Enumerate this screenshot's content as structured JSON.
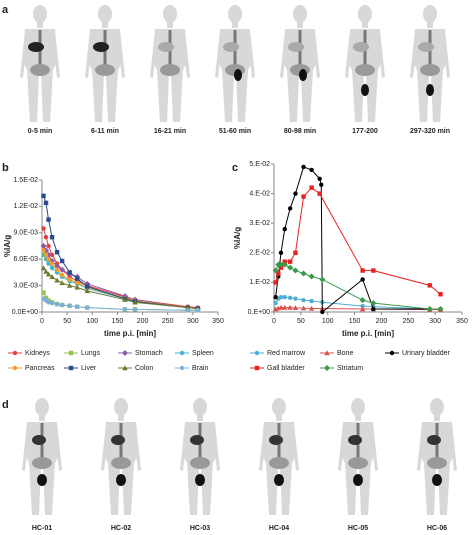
{
  "panel_labels": [
    "a",
    "b",
    "c",
    "d"
  ],
  "timepoints": [
    "0-5 min",
    "6-11 min",
    "16-21 min",
    "51-60 min",
    "80-98 min",
    "177-200",
    "297-320 min"
  ],
  "subjects": [
    "HC-01",
    "HC-02",
    "HC-03",
    "HC-04",
    "HC-05",
    "HC-06"
  ],
  "chart_data": [
    {
      "type": "line",
      "y_label": "%IA/g",
      "x_label": "time p.i. [min]",
      "xlim": [
        0,
        350
      ],
      "xticks": [
        0,
        50,
        100,
        150,
        200,
        250,
        300,
        350
      ],
      "ylim": [
        0,
        0.015
      ],
      "yticks": [
        {
          "value": 0,
          "label": "0.0E+00"
        },
        {
          "value": 0.003,
          "label": "3.0E-03"
        },
        {
          "value": 0.006,
          "label": "6.0E-03"
        },
        {
          "value": 0.009,
          "label": "9.0E-03"
        },
        {
          "value": 0.012,
          "label": "1.2E-02"
        },
        {
          "value": 0.015,
          "label": "1.5E-02"
        }
      ],
      "series": [
        {
          "name": "Kidneys",
          "color": "#e2403b",
          "x": [
            3,
            8,
            13,
            20,
            30,
            40,
            55,
            70,
            90,
            165,
            185,
            290,
            310
          ],
          "values": [
            0.0095,
            0.0085,
            0.0075,
            0.0065,
            0.0055,
            0.0048,
            0.004,
            0.0035,
            0.003,
            0.0017,
            0.0014,
            0.0006,
            0.0005
          ]
        },
        {
          "name": "Lungs",
          "color": "#92c353",
          "x": [
            3,
            8,
            13,
            20,
            30,
            40,
            55,
            70,
            90,
            165,
            185,
            290,
            310
          ],
          "values": [
            0.0022,
            0.0016,
            0.0013,
            0.0011,
            0.0009,
            0.0008,
            0.0007,
            0.0006,
            0.0005,
            0.0003,
            0.0003,
            0.0002,
            0.0002
          ]
        },
        {
          "name": "Stomach",
          "color": "#8e5ba6",
          "x": [
            3,
            8,
            13,
            20,
            30,
            40,
            55,
            70,
            90,
            165,
            185,
            290,
            310
          ],
          "values": [
            0.0075,
            0.007,
            0.0065,
            0.0058,
            0.0052,
            0.0048,
            0.0043,
            0.004,
            0.0032,
            0.0018,
            0.0014,
            0.0005,
            0.0004
          ]
        },
        {
          "name": "Spleen",
          "color": "#3fb6c9",
          "x": [
            3,
            8,
            13,
            20,
            30,
            40,
            55,
            70,
            90,
            165,
            185,
            290,
            310
          ],
          "values": [
            0.0065,
            0.006,
            0.0055,
            0.005,
            0.0045,
            0.004,
            0.0035,
            0.0032,
            0.0027,
            0.0015,
            0.0012,
            0.0005,
            0.0004
          ]
        },
        {
          "name": "Pancreas",
          "color": "#f39c2b",
          "x": [
            3,
            8,
            13,
            20,
            30,
            40,
            55,
            70,
            90,
            165,
            185,
            290,
            310
          ],
          "values": [
            0.007,
            0.0065,
            0.006,
            0.0055,
            0.0048,
            0.0042,
            0.0037,
            0.0033,
            0.0028,
            0.0016,
            0.0013,
            0.0005,
            0.0004
          ]
        },
        {
          "name": "Liver",
          "color": "#2a4b8d",
          "x": [
            3,
            8,
            13,
            20,
            30,
            40,
            55,
            70,
            90,
            165,
            185,
            290,
            310
          ],
          "values": [
            0.0132,
            0.0124,
            0.0105,
            0.0085,
            0.0068,
            0.0058,
            0.0045,
            0.0038,
            0.0029,
            0.0015,
            0.0012,
            0.0005,
            0.0004
          ]
        },
        {
          "name": "Colon",
          "color": "#6b7a2e",
          "x": [
            3,
            8,
            13,
            20,
            30,
            40,
            55,
            70,
            90,
            165,
            185,
            290,
            310
          ],
          "values": [
            0.005,
            0.0046,
            0.0043,
            0.004,
            0.0036,
            0.0033,
            0.003,
            0.0028,
            0.0024,
            0.0014,
            0.0011,
            0.0005,
            0.0004
          ]
        },
        {
          "name": "Brain",
          "color": "#7db0d8",
          "x": [
            3,
            8,
            13,
            20,
            30,
            40,
            55,
            70,
            90,
            165,
            185,
            290,
            310
          ],
          "values": [
            0.0015,
            0.0013,
            0.0011,
            0.001,
            0.0009,
            0.0008,
            0.0007,
            0.0006,
            0.0005,
            0.0003,
            0.0003,
            0.0002,
            0.0002
          ]
        }
      ]
    },
    {
      "type": "line",
      "y_label": "%IA/g",
      "x_label": "time p.i. [min]",
      "xlim": [
        0,
        350
      ],
      "xticks": [
        0,
        50,
        100,
        150,
        200,
        250,
        300,
        350
      ],
      "ylim": [
        0,
        0.05
      ],
      "yticks": [
        {
          "value": 0,
          "label": "0.E+00"
        },
        {
          "value": 0.01,
          "label": "1.E-02"
        },
        {
          "value": 0.02,
          "label": "2.E-02"
        },
        {
          "value": 0.03,
          "label": "3.E-02"
        },
        {
          "value": 0.04,
          "label": "4.E-02"
        },
        {
          "value": 0.05,
          "label": "5.E-02"
        }
      ],
      "series": [
        {
          "name": "Red marrow",
          "color": "#4eaed6",
          "x": [
            3,
            8,
            13,
            20,
            30,
            40,
            55,
            70,
            90,
            165,
            185,
            290,
            310
          ],
          "values": [
            0.003,
            0.0045,
            0.005,
            0.005,
            0.0048,
            0.0045,
            0.004,
            0.0037,
            0.0033,
            0.002,
            0.0018,
            0.001,
            0.0009
          ]
        },
        {
          "name": "Bone",
          "color": "#d9534f",
          "x": [
            3,
            8,
            13,
            20,
            30,
            40,
            55,
            70,
            90,
            165,
            185,
            290,
            310
          ],
          "values": [
            0.001,
            0.0013,
            0.0015,
            0.0015,
            0.0015,
            0.0014,
            0.0013,
            0.0012,
            0.0012,
            0.001,
            0.001,
            0.0008,
            0.0008
          ]
        },
        {
          "name": "Urinary bladder",
          "color": "#000000",
          "x": [
            3,
            8,
            13,
            20,
            30,
            40,
            55,
            70,
            85,
            88,
            90,
            165,
            185,
            290,
            310
          ],
          "values": [
            0.005,
            0.012,
            0.02,
            0.028,
            0.035,
            0.04,
            0.049,
            0.048,
            0.045,
            0.043,
            0,
            0.011,
            0.001,
            0.001,
            0.001
          ]
        },
        {
          "name": "Gall bladder",
          "color": "#e8231f",
          "x": [
            3,
            8,
            13,
            20,
            30,
            40,
            55,
            70,
            85,
            165,
            185,
            290,
            310
          ],
          "values": [
            0.01,
            0.013,
            0.015,
            0.017,
            0.017,
            0.02,
            0.039,
            0.042,
            0.04,
            0.014,
            0.014,
            0.009,
            0.006
          ]
        },
        {
          "name": "Striatum",
          "color": "#3a9a4a",
          "x": [
            3,
            8,
            13,
            20,
            30,
            40,
            55,
            70,
            90,
            165,
            185,
            290,
            310
          ],
          "values": [
            0.014,
            0.016,
            0.016,
            0.016,
            0.015,
            0.014,
            0.013,
            0.012,
            0.011,
            0.004,
            0.003,
            0.001,
            0.001
          ]
        }
      ]
    }
  ]
}
